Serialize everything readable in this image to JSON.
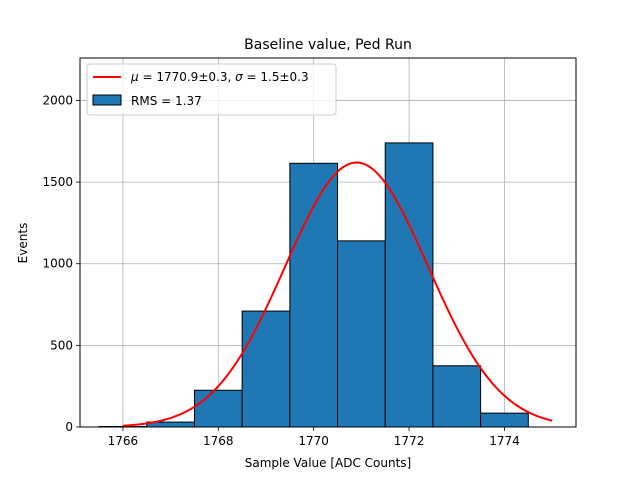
{
  "chart_data": {
    "type": "bar",
    "title": "Baseline value, Ped Run",
    "xlabel": "Sample Value [ADC Counts]",
    "ylabel": "Events",
    "xlim": [
      1765.1,
      1775.5
    ],
    "ylim": [
      0,
      2260
    ],
    "xticks": [
      1766,
      1768,
      1770,
      1772,
      1774
    ],
    "yticks": [
      0,
      500,
      1000,
      1500,
      2000
    ],
    "grid": true,
    "legend_position": "top-left",
    "histogram": {
      "name": "RMS = 1.37",
      "color": "#1f77b4",
      "bin_edges": [
        1765.5,
        1766.5,
        1767.5,
        1768.5,
        1769.5,
        1770.5,
        1771.5,
        1772.5,
        1773.5,
        1774.5
      ],
      "counts": [
        3,
        30,
        225,
        710,
        1615,
        1140,
        1740,
        375,
        85
      ]
    },
    "fit_curve": {
      "name": "$\\mu = 1770.9 \\pm 0.3, \\sigma = 1.5 \\pm 0.3$",
      "type": "gaussian",
      "color": "#ff0000",
      "amplitude": 1620,
      "mu": 1770.9,
      "sigma": 1.5,
      "x_range": [
        1766.0,
        1775.0
      ]
    }
  },
  "legend": {
    "fit_label": "$\\mu = 1770.9 \\pm 0.3, \\sigma = 1.5 \\pm 0.3$",
    "hist_label": "RMS = 1.37"
  }
}
